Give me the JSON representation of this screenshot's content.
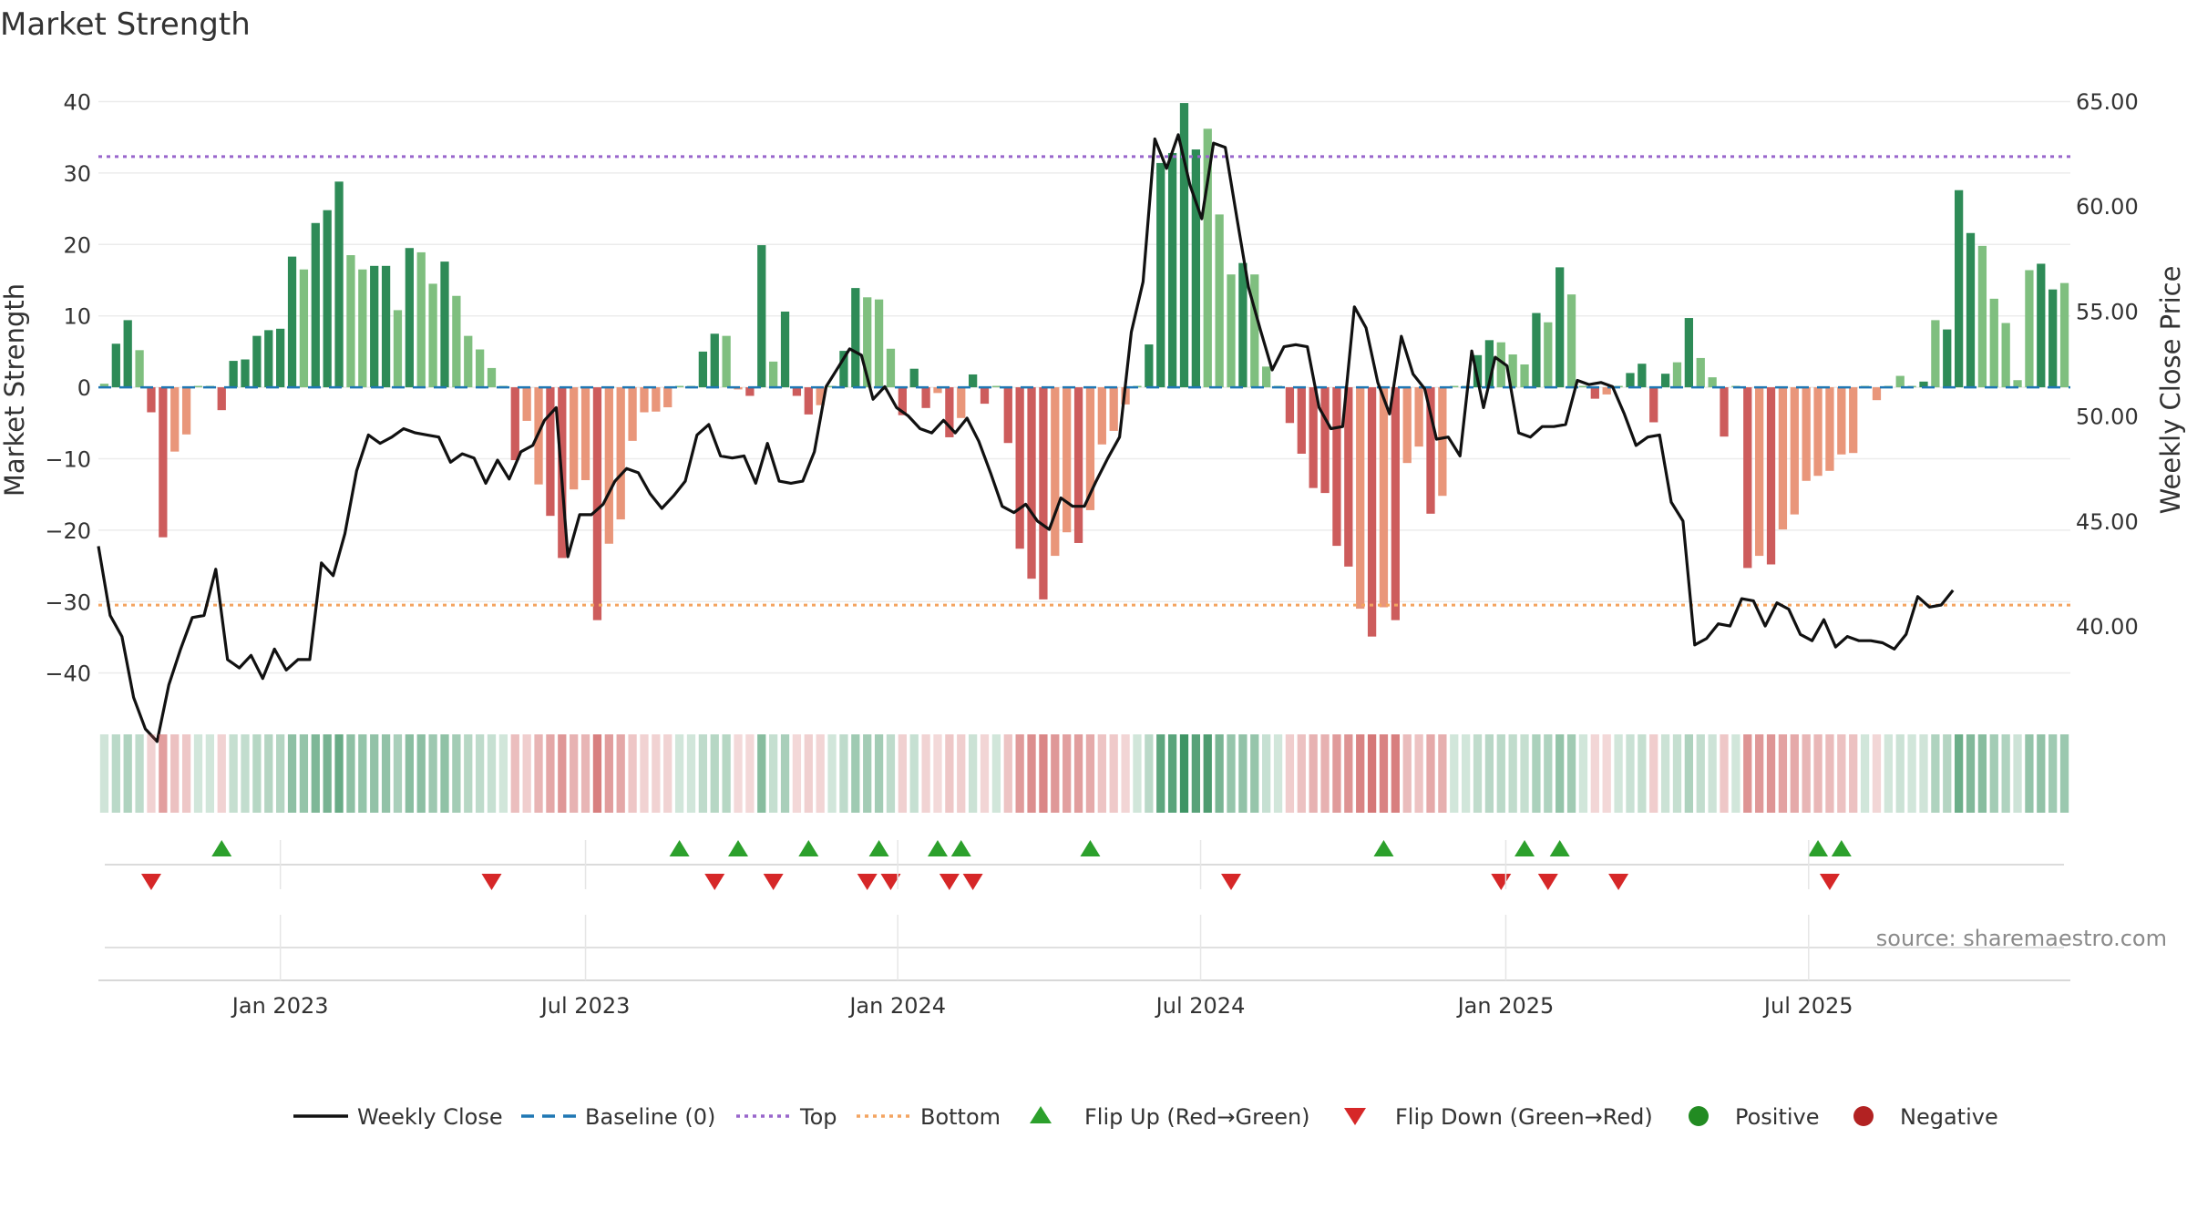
{
  "chart_data": {
    "type": "bar",
    "title": "Market Strength",
    "ylabel": "Market Strength",
    "y2label": "Weekly Close Price",
    "ylim": [
      -44,
      43
    ],
    "y2lim": [
      36.4,
      66.0
    ],
    "yticks": [
      -40,
      -30,
      -20,
      -10,
      0,
      10,
      20,
      30,
      40
    ],
    "yticklabels": [
      "−40",
      "−30",
      "−20",
      "−10",
      "0",
      "10",
      "20",
      "30",
      "40"
    ],
    "y2ticks": [
      40,
      45,
      50,
      55,
      60,
      65
    ],
    "y2ticklabels": [
      "40.00",
      "45.00",
      "50.00",
      "55.00",
      "60.00",
      "65.00"
    ],
    "xticks": [
      "Jan 2023",
      "Jul 2023",
      "Jan 2024",
      "Jul 2024",
      "Jan 2025",
      "Jul 2025"
    ],
    "xtick_weeks": [
      15,
      41,
      67.6,
      93.4,
      119.4,
      145.2
    ],
    "top_level": 32.3,
    "bottom_level": -30.5,
    "baseline": 0,
    "colors": {
      "positive_strong": "#2e8b57",
      "positive_weak": "#7fbf7f",
      "negative_strong": "#cd5c5c",
      "negative_weak": "#e9967a",
      "close_line": "#111111",
      "baseline": "#1f77b4",
      "top_line": "#9966cc",
      "bottom_line": "#f4a460",
      "flip_up": "#2ca02c",
      "flip_down": "#d62728",
      "positive_dot": "#228b22",
      "negative_dot": "#b22222"
    },
    "series": [
      {
        "name": "Market Strength",
        "kind": "bar",
        "values": [
          0.5,
          6.1,
          9.4,
          5.2,
          -3.5,
          -21.0,
          -9.0,
          -6.6,
          0.2,
          0.2,
          -3.2,
          3.7,
          3.9,
          7.2,
          8.0,
          8.2,
          18.3,
          16.5,
          23.0,
          24.8,
          28.8,
          18.5,
          16.5,
          17.0,
          17.0,
          10.8,
          19.5,
          18.9,
          14.5,
          17.6,
          12.8,
          7.2,
          5.3,
          2.7,
          0.2,
          -10.2,
          -4.7,
          -13.6,
          -18.0,
          -23.9,
          -14.3,
          -13.0,
          -32.6,
          -21.9,
          -18.5,
          -7.5,
          -3.5,
          -3.4,
          -2.8,
          0.2,
          0.2,
          5.0,
          7.5,
          7.2,
          -0.3,
          -1.2,
          19.9,
          3.6,
          10.6,
          -1.2,
          -3.8,
          -2.5,
          0.2,
          5.1,
          13.9,
          12.6,
          12.3,
          5.4,
          -3.9,
          2.6,
          -2.9,
          -0.8,
          -7.0,
          -4.3,
          1.8,
          -2.3,
          0.2,
          -7.8,
          -22.6,
          -26.8,
          -29.7,
          -23.6,
          -20.3,
          -21.8,
          -17.2,
          -8.0,
          -6.1,
          -2.4,
          0.2,
          6.0,
          31.4,
          32.8,
          39.8,
          33.3,
          36.2,
          24.2,
          15.8,
          17.4,
          15.8,
          2.9,
          0.2,
          -5.0,
          -9.3,
          -14.1,
          -14.8,
          -22.2,
          -25.1,
          -31.0,
          -34.9,
          -30.8,
          -32.6,
          -10.6,
          -8.3,
          -17.7,
          -15.2,
          0.2,
          0.2,
          4.5,
          6.6,
          6.3,
          4.6,
          3.2,
          10.4,
          9.1,
          16.8,
          13.0,
          0.2,
          -1.6,
          -1.0,
          0.2,
          2.0,
          3.3,
          -4.9,
          1.9,
          3.5,
          9.7,
          4.1,
          1.4,
          -6.9,
          0.2,
          -25.3,
          -23.6,
          -24.8,
          -19.9,
          -17.8,
          -13.1,
          -12.4,
          -11.7,
          -9.4,
          -9.2,
          0.2,
          -1.8,
          0.2,
          1.6,
          0.2,
          0.8,
          9.4,
          8.1,
          27.6,
          21.6,
          19.8,
          12.4,
          9.0,
          1.0,
          16.4,
          17.3,
          13.7,
          14.6
        ],
        "strong": [
          0,
          1,
          1,
          0,
          1,
          1,
          0,
          0,
          0,
          0,
          1,
          1,
          1,
          1,
          1,
          1,
          1,
          0,
          1,
          1,
          1,
          0,
          0,
          1,
          1,
          0,
          1,
          0,
          0,
          1,
          0,
          0,
          0,
          0,
          0,
          1,
          0,
          0,
          1,
          1,
          0,
          0,
          1,
          0,
          0,
          0,
          0,
          0,
          0,
          0,
          0,
          1,
          1,
          0,
          0,
          1,
          1,
          0,
          1,
          1,
          1,
          0,
          0,
          1,
          1,
          0,
          0,
          0,
          1,
          1,
          1,
          0,
          1,
          0,
          1,
          1,
          0,
          1,
          1,
          1,
          1,
          0,
          0,
          1,
          0,
          0,
          0,
          0,
          0,
          1,
          1,
          1,
          1,
          1,
          0,
          0,
          0,
          1,
          0,
          0,
          0,
          1,
          1,
          1,
          1,
          1,
          1,
          0,
          1,
          0,
          1,
          0,
          0,
          1,
          0,
          0,
          0,
          1,
          1,
          0,
          0,
          0,
          1,
          0,
          1,
          0,
          0,
          1,
          0,
          0,
          1,
          1,
          1,
          1,
          0,
          1,
          0,
          0,
          1,
          0,
          1,
          0,
          1,
          0,
          0,
          0,
          0,
          0,
          0,
          0,
          0,
          0,
          0,
          0,
          0,
          1,
          0,
          1,
          1,
          1,
          0,
          0,
          0,
          0,
          0,
          1,
          1,
          0,
          1
        ]
      },
      {
        "name": "Weekly Close",
        "kind": "line",
        "values": [
          43.8,
          40.5,
          39.5,
          36.6,
          35.1,
          34.5,
          37.2,
          38.9,
          40.4,
          40.5,
          42.7,
          38.4,
          38.0,
          38.6,
          37.5,
          38.9,
          37.9,
          38.4,
          38.4,
          43.0,
          42.4,
          44.4,
          47.4,
          49.1,
          48.7,
          49.0,
          49.4,
          49.2,
          49.1,
          49.0,
          47.8,
          48.2,
          48.0,
          46.8,
          47.9,
          47.0,
          48.3,
          48.6,
          49.8,
          50.4,
          43.3,
          45.3,
          45.3,
          45.8,
          46.9,
          47.5,
          47.3,
          46.3,
          45.6,
          46.2,
          46.9,
          49.1,
          49.6,
          48.1,
          48.0,
          48.1,
          46.8,
          48.7,
          46.9,
          46.8,
          46.9,
          48.3,
          51.4,
          52.3,
          53.2,
          52.9,
          50.8,
          51.4,
          50.4,
          50.0,
          49.4,
          49.2,
          49.8,
          49.2,
          49.9,
          48.8,
          47.3,
          45.7,
          45.4,
          45.8,
          45.0,
          44.6,
          46.1,
          45.7,
          45.7,
          46.9,
          48.0,
          49.0,
          54.0,
          56.4,
          63.2,
          61.8,
          63.4,
          61.0,
          59.4,
          63.0,
          62.8,
          59.4,
          56.1,
          54.1,
          52.2,
          53.3,
          53.4,
          53.3,
          50.4,
          49.4,
          49.5,
          55.2,
          54.2,
          51.6,
          50.1,
          53.8,
          52.0,
          51.3,
          48.9,
          49.0,
          48.1,
          53.1,
          50.4,
          52.8,
          52.4,
          49.2,
          49.0,
          49.5,
          49.5,
          49.6,
          51.7,
          51.5,
          51.6,
          51.4,
          50.1,
          48.6,
          49.0,
          49.1,
          45.9,
          45.0,
          39.1,
          39.4,
          40.1,
          40.0,
          41.3,
          41.2,
          40.0,
          41.1,
          40.8,
          39.6,
          39.3,
          40.3,
          39.0,
          39.5,
          39.3,
          39.3,
          39.2,
          38.9,
          39.6,
          41.4,
          40.9,
          41.0,
          41.7
        ],
        "x_offset": 0.3
      },
      {
        "name": "Baseline (0)",
        "kind": "hline"
      },
      {
        "name": "Top",
        "kind": "hline"
      },
      {
        "name": "Bottom",
        "kind": "hline"
      },
      {
        "name": "Flip Up (Red→Green)",
        "kind": "marker",
        "weeks": [
          10,
          49,
          54,
          60,
          66,
          71,
          73,
          84,
          109,
          121,
          124,
          146,
          148
        ]
      },
      {
        "name": "Flip Down (Green→Red)",
        "kind": "marker",
        "weeks": [
          4,
          33,
          52,
          57,
          65,
          67,
          72,
          74,
          96,
          119,
          123,
          129,
          147
        ]
      },
      {
        "name": "Positive",
        "kind": "marker"
      },
      {
        "name": "Negative",
        "kind": "marker"
      }
    ],
    "legend": [
      "Weekly Close",
      "Baseline (0)",
      "Top",
      "Bottom",
      "Flip Up (Red→Green)",
      "Flip Down (Green→Red)",
      "Positive",
      "Negative"
    ],
    "legend_placement": "bottom-center",
    "source_note": "source: sharemaestro.com",
    "grid": true
  }
}
